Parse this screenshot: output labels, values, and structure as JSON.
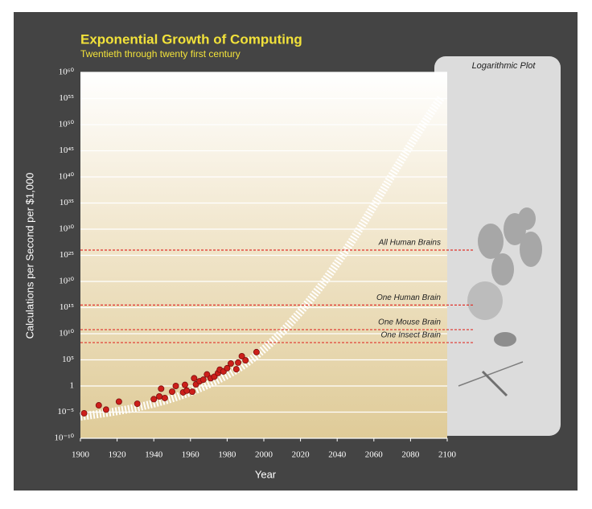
{
  "chart_data": {
    "type": "scatter",
    "title": "Exponential Growth of Computing",
    "subtitle": "Twentieth through twenty first century",
    "x_label": "Year",
    "y_label": "Calculations per Second per $1,000",
    "panel_title": "Logarithmic Plot",
    "log_scale_y": true,
    "grid": true,
    "color": "#cc1f1a",
    "xlim": [
      1900,
      2100
    ],
    "xticks": [
      1900,
      1920,
      1940,
      1960,
      1980,
      2000,
      2020,
      2040,
      2060,
      2080,
      2100
    ],
    "ylim": [
      1e-10,
      1e+60
    ],
    "yticks": [
      {
        "value": 1e-10,
        "label": "10⁻¹⁰"
      },
      {
        "value": 1e-05,
        "label": "10⁻⁵"
      },
      1,
      {
        "value": 100000.0,
        "label": "10⁵"
      },
      {
        "value": 10000000000.0,
        "label": "10¹⁰"
      },
      {
        "value": 1000000000000000.0,
        "label": "10¹⁵"
      },
      {
        "value": 1e+20,
        "label": "10²⁰"
      },
      {
        "value": 1e+25,
        "label": "10²⁵"
      },
      {
        "value": 1e+30,
        "label": "10³⁰"
      },
      {
        "value": 1e+35,
        "label": "10³⁵"
      },
      {
        "value": 1e+40,
        "label": "10⁴⁰"
      },
      {
        "value": 1e+45,
        "label": "10⁴⁵"
      },
      {
        "value": 1e+50,
        "label": "10⁵⁰"
      },
      {
        "value": 1e+55,
        "label": "10⁵⁵"
      },
      {
        "value": 1e+60,
        "label": "10⁶⁰"
      }
    ],
    "x": [
      1902,
      1910,
      1914,
      1921,
      1931,
      1940,
      1943,
      1944,
      1946,
      1950,
      1952,
      1956,
      1957,
      1958,
      1961,
      1962,
      1963,
      1965,
      1967,
      1969,
      1971,
      1973,
      1975,
      1976,
      1978,
      1980,
      1982,
      1985,
      1986,
      1988,
      1990,
      1996
    ],
    "values": [
      6e-06,
      0.0002,
      3e-05,
      0.001,
      0.0004,
      0.003,
      0.01,
      0.3,
      0.005,
      0.08,
      1,
      0.06,
      1.6,
      0.13,
      0.08,
      30,
      2,
      8,
      16,
      160,
      30,
      60,
      300,
      1300,
      600,
      2500,
      20000.0,
      1600,
      30000.0,
      500000.0,
      80000.0,
      3000000.0
    ],
    "reference_lines": [
      {
        "label": "All Human Brains",
        "value": 1e+26
      },
      {
        "label": "One Human Brain",
        "value": 3000000000000000.0
      },
      {
        "label": "One Mouse Brain",
        "value": 60000000000.0
      },
      {
        "label": "One Insect Brain",
        "value": 200000000.0
      }
    ],
    "reference_color": "#e0322b"
  }
}
